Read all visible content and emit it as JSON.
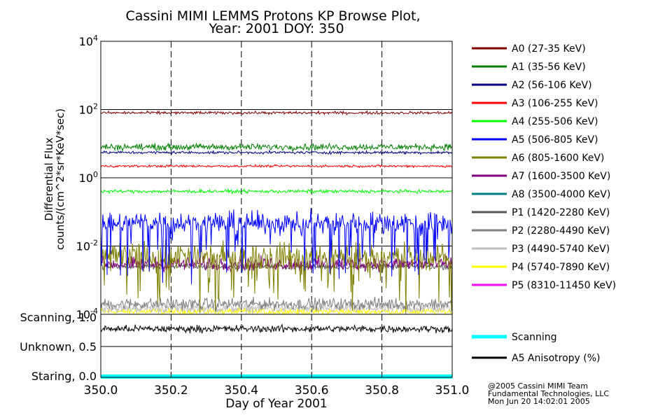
{
  "chart_data": [
    {
      "type": "line",
      "title_line1": "Cassini MIMI LEMMS Protons KP Browse Plot,",
      "title_line2": "Year: 2001 DOY: 350",
      "ylabel_line1": "Differential Flux",
      "ylabel_line2": "counts/(cm^2*sr*KeV*sec)",
      "yscale": "log",
      "ylim": [
        0.0001,
        10000
      ],
      "yticks": [
        {
          "base": "10",
          "exp": "4",
          "value": 10000
        },
        {
          "base": "10",
          "exp": "2",
          "value": 100
        },
        {
          "base": "10",
          "exp": "0",
          "value": 1
        },
        {
          "base": "10",
          "exp": "-2",
          "value": 0.01
        },
        {
          "base": "10",
          "exp": "-4",
          "value": 0.0001
        }
      ],
      "xlim": [
        350.0,
        351.0
      ],
      "grid": "dashed verticals at 350.2, 350.4, 350.6, 350.8; solid horizontals at each decade",
      "legend_placement": "right",
      "series": [
        {
          "name": "A0 (27-35 KeV)",
          "color": "#7f0000",
          "level": 80,
          "noise_decades": 0.06,
          "present": true
        },
        {
          "name": "A1 (35-56 KeV)",
          "color": "#007f00",
          "level": 8,
          "noise_decades": 0.14,
          "present": true
        },
        {
          "name": "A2 (56-106 KeV)",
          "color": "#00007f",
          "level": 5.5,
          "noise_decades": 0.06,
          "present": true
        },
        {
          "name": "A3 (106-255 KeV)",
          "color": "#ff0000",
          "level": 2.2,
          "noise_decades": 0.05,
          "present": true
        },
        {
          "name": "A4 (255-506 KeV)",
          "color": "#00ff00",
          "level": 0.4,
          "noise_decades": 0.07,
          "present": true
        },
        {
          "name": "A5 (506-805 KeV)",
          "color": "#0000ff",
          "level": 0.05,
          "noise_decades": 0.45,
          "present": true
        },
        {
          "name": "A6 (805-1600 KeV)",
          "color": "#7f7f00",
          "level": 0.005,
          "noise_decades": 0.6,
          "present": true
        },
        {
          "name": "A7 (1600-3500 KeV)",
          "color": "#7f007f",
          "level": 0.003,
          "noise_decades": 0.3,
          "present": true
        },
        {
          "name": "A8 (3500-4000 KeV)",
          "color": "#007f7f",
          "level": null,
          "noise_decades": 0,
          "present": false
        },
        {
          "name": "P1 (1420-2280 KeV)",
          "color": "#555555",
          "level": 0.0025,
          "noise_decades": 0.12,
          "present": true
        },
        {
          "name": "P2 (2280-4490 KeV)",
          "color": "#7f7f7f",
          "level": 0.0002,
          "noise_decades": 0.25,
          "present": true
        },
        {
          "name": "P3 (4490-5740 KeV)",
          "color": "#bfbfbf",
          "level": 0.00015,
          "noise_decades": 0.2,
          "present": true
        },
        {
          "name": "P4 (5740-7890 KeV)",
          "color": "#ffff00",
          "level": 0.00012,
          "noise_decades": 0.15,
          "present": true
        },
        {
          "name": "P5 (8310-11450 KeV)",
          "color": "#ff00ff",
          "level": null,
          "noise_decades": 0,
          "present": false
        }
      ]
    },
    {
      "type": "line",
      "ylabels": [
        "Scanning, 1.0",
        "Unknown, 0.5",
        "Staring, 0.0"
      ],
      "yvalues": [
        1.0,
        0.5,
        0.0
      ],
      "xlabel": "Day of Year 2001",
      "xticks": [
        "350.0",
        "350.2",
        "350.4",
        "350.6",
        "350.8",
        "351.0"
      ],
      "xtick_values": [
        350.0,
        350.2,
        350.4,
        350.6,
        350.8,
        351.0
      ],
      "xlim": [
        350.0,
        351.0
      ],
      "series": [
        {
          "name": "Scanning",
          "color": "#00ffff",
          "level": 0.0
        },
        {
          "name": "A5 Anisotropy (%)",
          "color": "#000000",
          "level": 0.8,
          "noise": 0.09
        }
      ]
    }
  ],
  "credits": {
    "line1": "@2005 Cassini MIMI Team",
    "line2": "Fundamental Technologies, LLC",
    "line3": "Mon Jun 20 14:02:01 2005"
  }
}
